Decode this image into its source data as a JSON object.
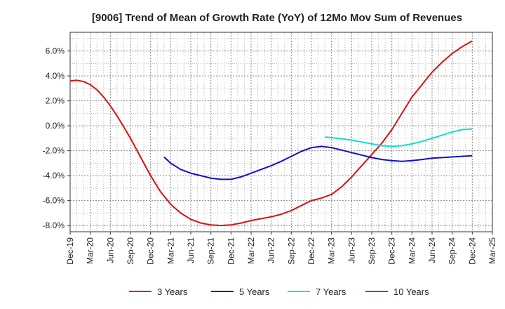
{
  "chart_data": {
    "type": "line",
    "title": "[9006]  Trend of Mean of Growth Rate (YoY) of 12Mo Mov Sum of Revenues",
    "xlabel": "",
    "ylabel": "",
    "ylim": [
      -8.5,
      7.5
    ],
    "y_ticks": [
      6.0,
      4.0,
      2.0,
      0.0,
      -2.0,
      -4.0,
      -6.0,
      -8.0
    ],
    "y_tick_labels": [
      "6.0%",
      "4.0%",
      "2.0%",
      "0.0%",
      "-2.0%",
      "-4.0%",
      "-6.0%",
      "-8.0%"
    ],
    "x_tick_labels": [
      "Dec-19",
      "Mar-20",
      "Jun-20",
      "Sep-20",
      "Dec-20",
      "Mar-21",
      "Jun-21",
      "Sep-21",
      "Dec-21",
      "Mar-22",
      "Jun-22",
      "Sep-22",
      "Dec-22",
      "Mar-23",
      "Jun-23",
      "Sep-23",
      "Dec-23",
      "Mar-24",
      "Jun-24",
      "Sep-24",
      "Dec-24",
      "Mar-25"
    ],
    "x_note": "x values are quarter indices (0 = Dec-19, 21 = Mar-25)",
    "xlim": [
      0,
      21
    ],
    "grid": true,
    "legend_position": "bottom",
    "series": [
      {
        "name": "3 Years",
        "color": "#dd1111",
        "x": [
          0,
          0.33,
          0.67,
          1,
          1.33,
          1.67,
          2,
          2.33,
          2.67,
          3,
          3.5,
          4,
          4.5,
          5,
          5.5,
          6,
          6.5,
          7,
          7.5,
          8,
          8.5,
          9,
          9.5,
          10,
          10.5,
          11,
          11.5,
          12,
          12.5,
          13,
          13.5,
          14,
          14.5,
          15,
          15.5,
          16,
          16.5,
          17,
          17.5,
          18,
          18.5,
          19,
          19.5,
          20
        ],
        "values": [
          3.6,
          3.65,
          3.55,
          3.3,
          2.9,
          2.3,
          1.6,
          0.8,
          -0.1,
          -1.0,
          -2.5,
          -4.0,
          -5.3,
          -6.3,
          -7.0,
          -7.5,
          -7.8,
          -7.95,
          -8.0,
          -7.95,
          -7.8,
          -7.6,
          -7.45,
          -7.3,
          -7.1,
          -6.8,
          -6.4,
          -6.0,
          -5.8,
          -5.5,
          -4.9,
          -4.1,
          -3.2,
          -2.3,
          -1.4,
          -0.3,
          1.0,
          2.3,
          3.3,
          4.3,
          5.1,
          5.8,
          6.35,
          6.8
        ]
      },
      {
        "name": "5 Years",
        "color": "#1111cc",
        "x": [
          4.67,
          5,
          5.5,
          6,
          6.5,
          7,
          7.5,
          8,
          8.5,
          9,
          9.5,
          10,
          10.5,
          11,
          11.5,
          12,
          12.5,
          13,
          13.5,
          14,
          14.5,
          15,
          15.5,
          16,
          16.5,
          17,
          17.5,
          18,
          18.5,
          19,
          19.5,
          20
        ],
        "values": [
          -2.5,
          -3.0,
          -3.5,
          -3.8,
          -4.0,
          -4.2,
          -4.3,
          -4.3,
          -4.1,
          -3.8,
          -3.5,
          -3.2,
          -2.85,
          -2.45,
          -2.05,
          -1.75,
          -1.65,
          -1.75,
          -1.95,
          -2.15,
          -2.35,
          -2.55,
          -2.7,
          -2.8,
          -2.85,
          -2.8,
          -2.7,
          -2.6,
          -2.55,
          -2.5,
          -2.45,
          -2.4
        ]
      },
      {
        "name": "7 Years",
        "color": "#11dddd",
        "x": [
          12.67,
          13,
          13.5,
          14,
          14.5,
          15,
          15.5,
          16,
          16.5,
          17,
          17.5,
          18,
          18.5,
          19,
          19.5,
          20
        ],
        "values": [
          -0.9,
          -0.95,
          -1.05,
          -1.15,
          -1.3,
          -1.45,
          -1.6,
          -1.65,
          -1.6,
          -1.45,
          -1.25,
          -1.0,
          -0.75,
          -0.5,
          -0.3,
          -0.25
        ]
      },
      {
        "name": "10 Years",
        "color": "#118811",
        "x": [],
        "values": []
      }
    ]
  }
}
